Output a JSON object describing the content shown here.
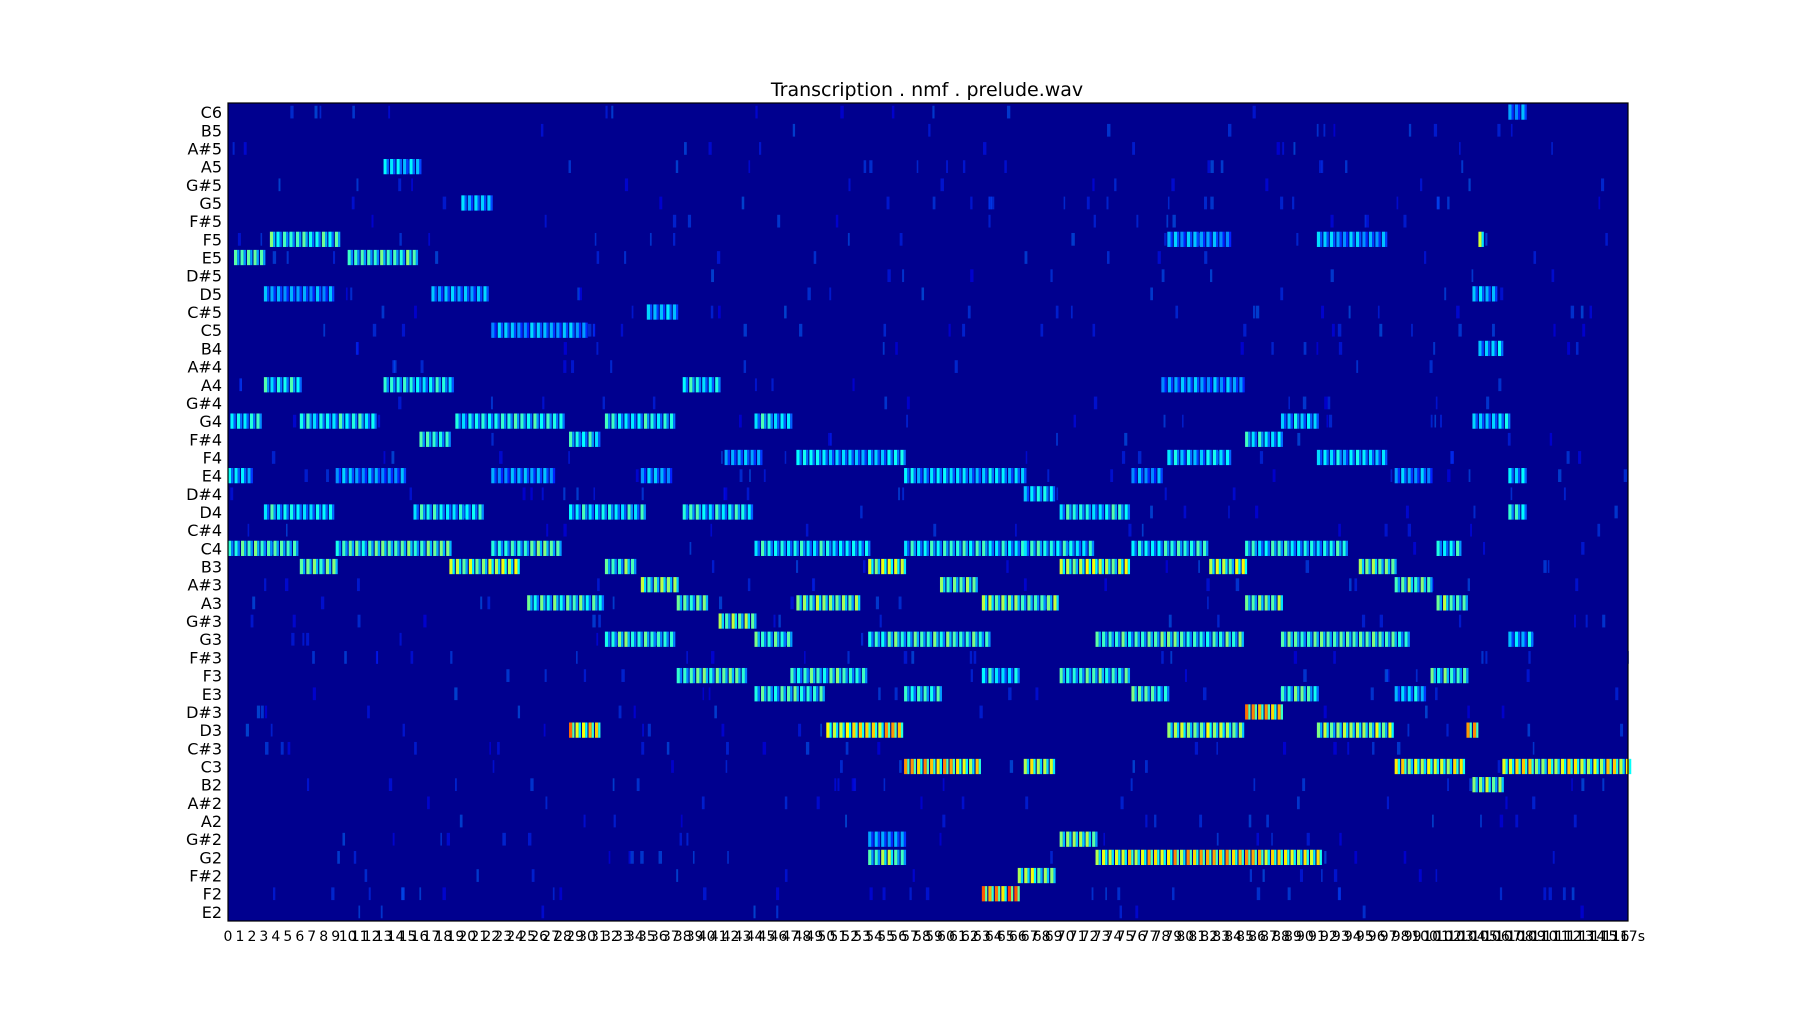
{
  "chart_data": {
    "type": "heatmap",
    "title": "Transcription . nmf . prelude.wav",
    "xlabel": "",
    "ylabel": "",
    "colormap": "jet",
    "background_color": "#00008f",
    "grid": false,
    "legend": "none",
    "notes": [
      "E2",
      "F2",
      "F#2",
      "G2",
      "G#2",
      "A2",
      "A#2",
      "B2",
      "C3",
      "C#3",
      "D3",
      "D#3",
      "E3",
      "F3",
      "F#3",
      "G3",
      "G#3",
      "A3",
      "A#3",
      "B3",
      "C4",
      "C#4",
      "D4",
      "D#4",
      "E4",
      "F4",
      "F#4",
      "G4",
      "G#4",
      "A4",
      "A#4",
      "B4",
      "C5",
      "C#5",
      "D5",
      "D#5",
      "E5",
      "F5",
      "F#5",
      "G5",
      "G#5",
      "A5",
      "A#5",
      "B5",
      "C6"
    ],
    "xlim_seconds": [
      0,
      117
    ],
    "x_tick_step_seconds": 1,
    "x_tick_labels": [
      "0",
      "1",
      "2",
      "3",
      "4",
      "5",
      "6",
      "7",
      "8",
      "9",
      "10",
      "11",
      "12",
      "13",
      "14",
      "15",
      "16",
      "17",
      "18",
      "19",
      "20",
      "21",
      "22",
      "23",
      "24",
      "25",
      "26",
      "27",
      "28",
      "29",
      "30",
      "31",
      "32",
      "33",
      "34",
      "35",
      "36",
      "37",
      "38",
      "39",
      "40",
      "41",
      "42",
      "43",
      "44",
      "45",
      "46",
      "47",
      "48",
      "49",
      "50",
      "51",
      "52",
      "53",
      "54",
      "55",
      "56",
      "57",
      "58",
      "59",
      "60",
      "61",
      "62",
      "63",
      "64",
      "65",
      "66",
      "67",
      "68",
      "69",
      "70",
      "71",
      "72",
      "73",
      "74",
      "75",
      "76",
      "77",
      "78",
      "79",
      "80",
      "81",
      "82",
      "83",
      "84",
      "85",
      "86",
      "87",
      "88",
      "89",
      "90",
      "91",
      "92",
      "93",
      "94",
      "95",
      "96",
      "97",
      "98",
      "99",
      "100",
      "101",
      "102",
      "103",
      "104",
      "105",
      "106",
      "107",
      "108",
      "109",
      "110",
      "111",
      "112",
      "113",
      "114",
      "115",
      "116",
      "117s"
    ],
    "segments": [
      {
        "note": "E5",
        "start": 0.5,
        "end": 3.0,
        "intensity": 0.45
      },
      {
        "note": "C4",
        "start": 0.0,
        "end": 6.0,
        "intensity": 0.45
      },
      {
        "note": "G4",
        "start": 0.2,
        "end": 2.8,
        "intensity": 0.4
      },
      {
        "note": "E4",
        "start": 0.0,
        "end": 2.0,
        "intensity": 0.35
      },
      {
        "note": "D4",
        "start": 3.0,
        "end": 9.0,
        "intensity": 0.4
      },
      {
        "note": "A4",
        "start": 3.0,
        "end": 6.0,
        "intensity": 0.4
      },
      {
        "note": "F5",
        "start": 3.5,
        "end": 9.5,
        "intensity": 0.45
      },
      {
        "note": "D5",
        "start": 3.0,
        "end": 9.0,
        "intensity": 0.3
      },
      {
        "note": "B3",
        "start": 6.0,
        "end": 9.0,
        "intensity": 0.5
      },
      {
        "note": "G4",
        "start": 6.0,
        "end": 12.5,
        "intensity": 0.4
      },
      {
        "note": "C4",
        "start": 9.0,
        "end": 18.5,
        "intensity": 0.45
      },
      {
        "note": "E5",
        "start": 10.0,
        "end": 16.0,
        "intensity": 0.45
      },
      {
        "note": "A5",
        "start": 13.0,
        "end": 16.0,
        "intensity": 0.35
      },
      {
        "note": "A4",
        "start": 13.0,
        "end": 19.0,
        "intensity": 0.4
      },
      {
        "note": "E4",
        "start": 9.0,
        "end": 15.0,
        "intensity": 0.3
      },
      {
        "note": "D4",
        "start": 15.5,
        "end": 21.5,
        "intensity": 0.4
      },
      {
        "note": "F#4",
        "start": 16.0,
        "end": 18.5,
        "intensity": 0.45
      },
      {
        "note": "B3",
        "start": 18.5,
        "end": 24.5,
        "intensity": 0.55
      },
      {
        "note": "G4",
        "start": 19.0,
        "end": 28.0,
        "intensity": 0.4
      },
      {
        "note": "D5",
        "start": 17.0,
        "end": 21.5,
        "intensity": 0.3
      },
      {
        "note": "G5",
        "start": 19.5,
        "end": 22.0,
        "intensity": 0.35
      },
      {
        "note": "C4",
        "start": 22.0,
        "end": 28.0,
        "intensity": 0.45
      },
      {
        "note": "E4",
        "start": 22.0,
        "end": 27.5,
        "intensity": 0.3
      },
      {
        "note": "C5",
        "start": 22.0,
        "end": 30.0,
        "intensity": 0.3
      },
      {
        "note": "A3",
        "start": 25.0,
        "end": 31.5,
        "intensity": 0.45
      },
      {
        "note": "D3",
        "start": 28.5,
        "end": 31.0,
        "intensity": 0.7
      },
      {
        "note": "F#4",
        "start": 28.5,
        "end": 31.0,
        "intensity": 0.4
      },
      {
        "note": "D4",
        "start": 28.5,
        "end": 35.0,
        "intensity": 0.4
      },
      {
        "note": "B3",
        "start": 31.5,
        "end": 34.0,
        "intensity": 0.5
      },
      {
        "note": "G3",
        "start": 31.5,
        "end": 37.5,
        "intensity": 0.45
      },
      {
        "note": "G4",
        "start": 31.5,
        "end": 37.5,
        "intensity": 0.4
      },
      {
        "note": "A#3",
        "start": 34.5,
        "end": 37.5,
        "intensity": 0.5
      },
      {
        "note": "E4",
        "start": 34.5,
        "end": 37.0,
        "intensity": 0.3
      },
      {
        "note": "C#5",
        "start": 35.0,
        "end": 37.5,
        "intensity": 0.35
      },
      {
        "note": "F3",
        "start": 37.5,
        "end": 43.5,
        "intensity": 0.45
      },
      {
        "note": "A3",
        "start": 37.5,
        "end": 40.0,
        "intensity": 0.45
      },
      {
        "note": "A4",
        "start": 38.0,
        "end": 41.0,
        "intensity": 0.4
      },
      {
        "note": "D4",
        "start": 38.0,
        "end": 44.0,
        "intensity": 0.4
      },
      {
        "note": "G#3",
        "start": 41.0,
        "end": 44.0,
        "intensity": 0.5
      },
      {
        "note": "E3",
        "start": 44.0,
        "end": 50.0,
        "intensity": 0.45
      },
      {
        "note": "G3",
        "start": 44.0,
        "end": 47.0,
        "intensity": 0.45
      },
      {
        "note": "C4",
        "start": 44.0,
        "end": 53.5,
        "intensity": 0.4
      },
      {
        "note": "G4",
        "start": 44.0,
        "end": 47.0,
        "intensity": 0.4
      },
      {
        "note": "F4",
        "start": 41.5,
        "end": 44.5,
        "intensity": 0.3
      },
      {
        "note": "F3",
        "start": 47.0,
        "end": 53.5,
        "intensity": 0.45
      },
      {
        "note": "A3",
        "start": 47.5,
        "end": 53.0,
        "intensity": 0.5
      },
      {
        "note": "F4",
        "start": 47.5,
        "end": 56.5,
        "intensity": 0.35
      },
      {
        "note": "D3",
        "start": 50.0,
        "end": 56.5,
        "intensity": 0.65
      },
      {
        "note": "G2",
        "start": 53.5,
        "end": 56.5,
        "intensity": 0.5
      },
      {
        "note": "G#2",
        "start": 53.5,
        "end": 56.5,
        "intensity": 0.3
      },
      {
        "note": "B3",
        "start": 53.5,
        "end": 56.5,
        "intensity": 0.55
      },
      {
        "note": "G3",
        "start": 53.5,
        "end": 63.5,
        "intensity": 0.45
      },
      {
        "note": "E3",
        "start": 56.5,
        "end": 59.5,
        "intensity": 0.45
      },
      {
        "note": "C3",
        "start": 56.5,
        "end": 63.0,
        "intensity": 0.65
      },
      {
        "note": "E4",
        "start": 56.5,
        "end": 66.5,
        "intensity": 0.35
      },
      {
        "note": "C4",
        "start": 56.5,
        "end": 66.5,
        "intensity": 0.4
      },
      {
        "note": "A#3",
        "start": 59.5,
        "end": 62.5,
        "intensity": 0.5
      },
      {
        "note": "F2",
        "start": 63.0,
        "end": 66.0,
        "intensity": 0.75
      },
      {
        "note": "F3",
        "start": 63.0,
        "end": 66.0,
        "intensity": 0.4
      },
      {
        "note": "A3",
        "start": 63.0,
        "end": 69.5,
        "intensity": 0.5
      },
      {
        "note": "F#2",
        "start": 66.0,
        "end": 69.0,
        "intensity": 0.55
      },
      {
        "note": "C3",
        "start": 66.5,
        "end": 69.0,
        "intensity": 0.6
      },
      {
        "note": "D#4",
        "start": 66.5,
        "end": 69.0,
        "intensity": 0.35
      },
      {
        "note": "G#2",
        "start": 69.5,
        "end": 72.5,
        "intensity": 0.5
      },
      {
        "note": "F3",
        "start": 69.5,
        "end": 75.5,
        "intensity": 0.45
      },
      {
        "note": "B3",
        "start": 69.5,
        "end": 75.5,
        "intensity": 0.55
      },
      {
        "note": "D4",
        "start": 69.5,
        "end": 75.5,
        "intensity": 0.4
      },
      {
        "note": "C4",
        "start": 66.5,
        "end": 72.5,
        "intensity": 0.4
      },
      {
        "note": "G2",
        "start": 72.5,
        "end": 91.5,
        "intensity": 0.65
      },
      {
        "note": "G3",
        "start": 72.5,
        "end": 85.0,
        "intensity": 0.45
      },
      {
        "note": "E3",
        "start": 75.5,
        "end": 78.5,
        "intensity": 0.45
      },
      {
        "note": "E4",
        "start": 75.5,
        "end": 78.0,
        "intensity": 0.3
      },
      {
        "note": "C4",
        "start": 75.5,
        "end": 82.0,
        "intensity": 0.4
      },
      {
        "note": "D3",
        "start": 78.5,
        "end": 85.0,
        "intensity": 0.55
      },
      {
        "note": "F4",
        "start": 78.5,
        "end": 84.0,
        "intensity": 0.35
      },
      {
        "note": "F5",
        "start": 78.5,
        "end": 84.0,
        "intensity": 0.3
      },
      {
        "note": "A4",
        "start": 78.0,
        "end": 85.0,
        "intensity": 0.3
      },
      {
        "note": "B3",
        "start": 82.0,
        "end": 85.0,
        "intensity": 0.55
      },
      {
        "note": "D#3",
        "start": 85.0,
        "end": 88.0,
        "intensity": 0.7
      },
      {
        "note": "A3",
        "start": 85.0,
        "end": 88.0,
        "intensity": 0.5
      },
      {
        "note": "F#4",
        "start": 85.0,
        "end": 88.0,
        "intensity": 0.4
      },
      {
        "note": "C4",
        "start": 85.0,
        "end": 93.5,
        "intensity": 0.4
      },
      {
        "note": "E3",
        "start": 88.0,
        "end": 91.0,
        "intensity": 0.45
      },
      {
        "note": "G4",
        "start": 88.0,
        "end": 91.0,
        "intensity": 0.35
      },
      {
        "note": "G3",
        "start": 88.0,
        "end": 98.5,
        "intensity": 0.45
      },
      {
        "note": "D3",
        "start": 91.0,
        "end": 97.5,
        "intensity": 0.55
      },
      {
        "note": "F4",
        "start": 91.0,
        "end": 97.0,
        "intensity": 0.35
      },
      {
        "note": "F5",
        "start": 91.0,
        "end": 97.0,
        "intensity": 0.3
      },
      {
        "note": "B3",
        "start": 94.5,
        "end": 97.5,
        "intensity": 0.5
      },
      {
        "note": "C3",
        "start": 97.5,
        "end": 103.5,
        "intensity": 0.6
      },
      {
        "note": "E4",
        "start": 97.5,
        "end": 100.5,
        "intensity": 0.3
      },
      {
        "note": "A#3",
        "start": 97.5,
        "end": 100.5,
        "intensity": 0.5
      },
      {
        "note": "E3",
        "start": 97.5,
        "end": 100.0,
        "intensity": 0.35
      },
      {
        "note": "C4",
        "start": 101.0,
        "end": 103.0,
        "intensity": 0.4
      },
      {
        "note": "A3",
        "start": 101.0,
        "end": 103.5,
        "intensity": 0.5
      },
      {
        "note": "F3",
        "start": 100.5,
        "end": 103.5,
        "intensity": 0.45
      },
      {
        "note": "D3",
        "start": 103.5,
        "end": 104.5,
        "intensity": 0.7
      },
      {
        "note": "B2",
        "start": 104.0,
        "end": 106.5,
        "intensity": 0.55
      },
      {
        "note": "C3",
        "start": 106.5,
        "end": 117.0,
        "intensity": 0.6
      },
      {
        "note": "F5",
        "start": 104.5,
        "end": 105.0,
        "intensity": 0.55
      },
      {
        "note": "D5",
        "start": 104.0,
        "end": 106.0,
        "intensity": 0.35
      },
      {
        "note": "B4",
        "start": 104.5,
        "end": 106.5,
        "intensity": 0.35
      },
      {
        "note": "G4",
        "start": 104.0,
        "end": 107.0,
        "intensity": 0.35
      },
      {
        "note": "E4",
        "start": 107.0,
        "end": 108.5,
        "intensity": 0.35
      },
      {
        "note": "D4",
        "start": 107.0,
        "end": 108.5,
        "intensity": 0.4
      },
      {
        "note": "G3",
        "start": 107.0,
        "end": 109.0,
        "intensity": 0.35
      },
      {
        "note": "C6",
        "start": 107.0,
        "end": 108.5,
        "intensity": 0.3
      }
    ]
  }
}
